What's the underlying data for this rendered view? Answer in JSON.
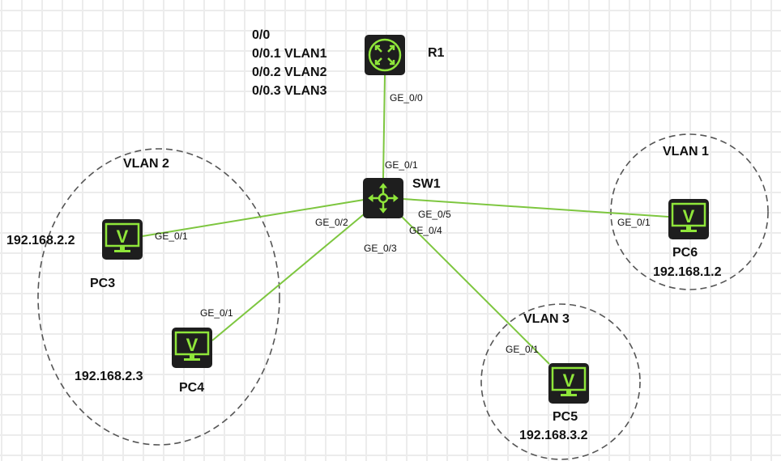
{
  "colors": {
    "link": "#7dc63f",
    "device_bg": "#1e1e1e",
    "device_icon": "#8fe63a",
    "vlan_border": "#555555"
  },
  "router": {
    "name": "R1",
    "icon": "router-icon",
    "port": "GE_0/0",
    "notes": [
      "0/0",
      "0/0.1 VLAN1",
      "0/0.2 VLAN2",
      "0/0.3 VLAN3"
    ]
  },
  "switch": {
    "name": "SW1",
    "icon": "switch-icon",
    "ports": {
      "uplink": "GE_0/1",
      "pc3": "GE_0/2",
      "pc4": "GE_0/3",
      "pc5": "GE_0/4",
      "pc6": "GE_0/5"
    }
  },
  "pcs": [
    {
      "name": "PC3",
      "ip": "192.168.2.2",
      "port": "GE_0/1"
    },
    {
      "name": "PC4",
      "ip": "192.168.2.3",
      "port": "GE_0/1"
    },
    {
      "name": "PC5",
      "ip": "192.168.3.2",
      "port": "GE_0/1"
    },
    {
      "name": "PC6",
      "ip": "192.168.1.2",
      "port": "GE_0/1"
    }
  ],
  "vlans": {
    "vlan1": "VLAN 1",
    "vlan2": "VLAN 2",
    "vlan3": "VLAN 3"
  }
}
